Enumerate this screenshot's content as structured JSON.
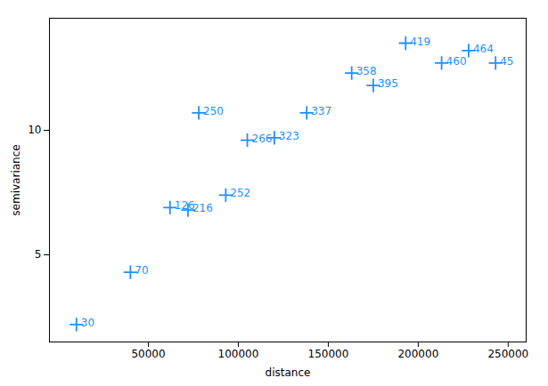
{
  "chart_data": {
    "type": "scatter",
    "x": [
      10000,
      40000,
      62000,
      72000,
      78000,
      93000,
      105000,
      120000,
      138000,
      163000,
      175000,
      193000,
      213000,
      228000,
      243000
    ],
    "values": [
      2.2,
      4.3,
      6.9,
      6.8,
      10.7,
      7.4,
      9.6,
      9.7,
      10.7,
      12.3,
      11.8,
      13.5,
      12.7,
      13.2,
      12.7
    ],
    "labels": [
      "30",
      "70",
      "126",
      "216",
      "250",
      "252",
      "266",
      "323",
      "337",
      "358",
      "395",
      "419",
      "460",
      "464",
      "45"
    ],
    "color": "#1E90FF",
    "marker": "plus",
    "xlabel": "distance",
    "ylabel": "semivariance",
    "xlim": [
      -5000,
      260000
    ],
    "ylim": [
      1.5,
      14.5
    ],
    "xticks": [
      50000,
      100000,
      150000,
      200000,
      250000
    ],
    "yticks": [
      5,
      10
    ],
    "grid": false
  }
}
